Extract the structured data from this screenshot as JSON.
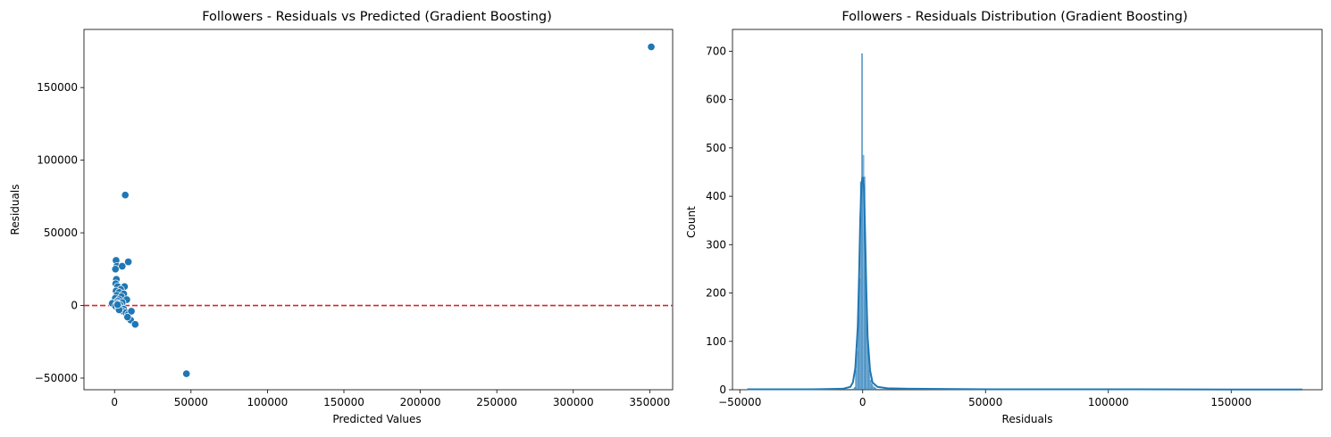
{
  "chart_data": [
    {
      "type": "scatter",
      "title": "Followers - Residuals vs Predicted (Gradient Boosting)",
      "xlabel": "Predicted Values",
      "ylabel": "Residuals",
      "xlim": [
        -20000,
        365000
      ],
      "ylim": [
        -58000,
        190000
      ],
      "xticks": [
        0,
        50000,
        100000,
        150000,
        200000,
        250000,
        300000,
        350000
      ],
      "yticks": [
        -50000,
        0,
        50000,
        100000,
        150000
      ],
      "point_color": "#1f77b4",
      "reference_line": {
        "y": 0,
        "color": "#d62728",
        "style": "dashed"
      },
      "points": [
        {
          "x": 351000,
          "y": 178000
        },
        {
          "x": 47000,
          "y": -47000
        },
        {
          "x": 7000,
          "y": 76000
        },
        {
          "x": 9000,
          "y": 30000
        },
        {
          "x": 1000,
          "y": 31000
        },
        {
          "x": 1500,
          "y": 27000
        },
        {
          "x": 600,
          "y": 25000
        },
        {
          "x": 5000,
          "y": 27000
        },
        {
          "x": 1200,
          "y": 18000
        },
        {
          "x": 800,
          "y": 15000
        },
        {
          "x": 2000,
          "y": 13000
        },
        {
          "x": 6500,
          "y": 13000
        },
        {
          "x": 4000,
          "y": 11000
        },
        {
          "x": 1000,
          "y": 10000
        },
        {
          "x": 3000,
          "y": 9000
        },
        {
          "x": 6000,
          "y": 8000
        },
        {
          "x": 1500,
          "y": 7000
        },
        {
          "x": 4500,
          "y": 6000
        },
        {
          "x": 500,
          "y": 5000
        },
        {
          "x": 3000,
          "y": 4000
        },
        {
          "x": 8000,
          "y": 4000
        },
        {
          "x": 2000,
          "y": 3000
        },
        {
          "x": 1000,
          "y": 2000
        },
        {
          "x": -1500,
          "y": 1500
        },
        {
          "x": 5000,
          "y": 2000
        },
        {
          "x": 1500,
          "y": 1000
        },
        {
          "x": 3500,
          "y": 500
        },
        {
          "x": 700,
          "y": -500
        },
        {
          "x": 2500,
          "y": -1000
        },
        {
          "x": 4000,
          "y": -2000
        },
        {
          "x": 6000,
          "y": -2500
        },
        {
          "x": 5500,
          "y": -4000
        },
        {
          "x": 7500,
          "y": -5000
        },
        {
          "x": 9000,
          "y": -6000
        },
        {
          "x": 11000,
          "y": -4000
        },
        {
          "x": 10500,
          "y": -10000
        },
        {
          "x": 13500,
          "y": -13000
        },
        {
          "x": 8500,
          "y": -8000
        },
        {
          "x": 3000,
          "y": -3000
        },
        {
          "x": 2000,
          "y": 500
        }
      ]
    },
    {
      "type": "histogram",
      "title": "Followers - Residuals Distribution (Gradient Boosting)",
      "xlabel": "Residuals",
      "ylabel": "Count",
      "xlim": [
        -53000,
        187000
      ],
      "ylim": [
        0,
        745
      ],
      "xticks": [
        -50000,
        0,
        50000,
        100000,
        150000
      ],
      "yticks": [
        0,
        100,
        200,
        300,
        400,
        500,
        600,
        700
      ],
      "bar_color": "#1f77b4",
      "bin_width": 500,
      "bins": [
        {
          "x": -4500,
          "count": 1
        },
        {
          "x": -4000,
          "count": 2
        },
        {
          "x": -3500,
          "count": 5
        },
        {
          "x": -3000,
          "count": 40
        },
        {
          "x": -2500,
          "count": 80
        },
        {
          "x": -2000,
          "count": 150
        },
        {
          "x": -1500,
          "count": 230
        },
        {
          "x": -1000,
          "count": 430
        },
        {
          "x": -500,
          "count": 695
        },
        {
          "x": 0,
          "count": 485
        },
        {
          "x": 500,
          "count": 440
        },
        {
          "x": 1000,
          "count": 250
        },
        {
          "x": 1500,
          "count": 150
        },
        {
          "x": 2000,
          "count": 90
        },
        {
          "x": 2500,
          "count": 40
        },
        {
          "x": 3000,
          "count": 20
        },
        {
          "x": 3500,
          "count": 12
        },
        {
          "x": 4000,
          "count": 8
        },
        {
          "x": 4500,
          "count": 5
        },
        {
          "x": 5000,
          "count": 3
        }
      ],
      "kde": {
        "color": "#1f77b4",
        "x": [
          -47000,
          -20000,
          -8000,
          -5000,
          -4000,
          -3000,
          -2000,
          -1500,
          -1000,
          -500,
          0,
          500,
          1000,
          1500,
          2000,
          3000,
          4000,
          6000,
          10000,
          20000,
          50000,
          100000,
          150000,
          179000
        ],
        "y": [
          1,
          1,
          2,
          6,
          15,
          45,
          130,
          230,
          350,
          425,
          440,
          420,
          320,
          200,
          110,
          40,
          15,
          6,
          3,
          2,
          1,
          1,
          0.5,
          0.5
        ]
      }
    }
  ]
}
